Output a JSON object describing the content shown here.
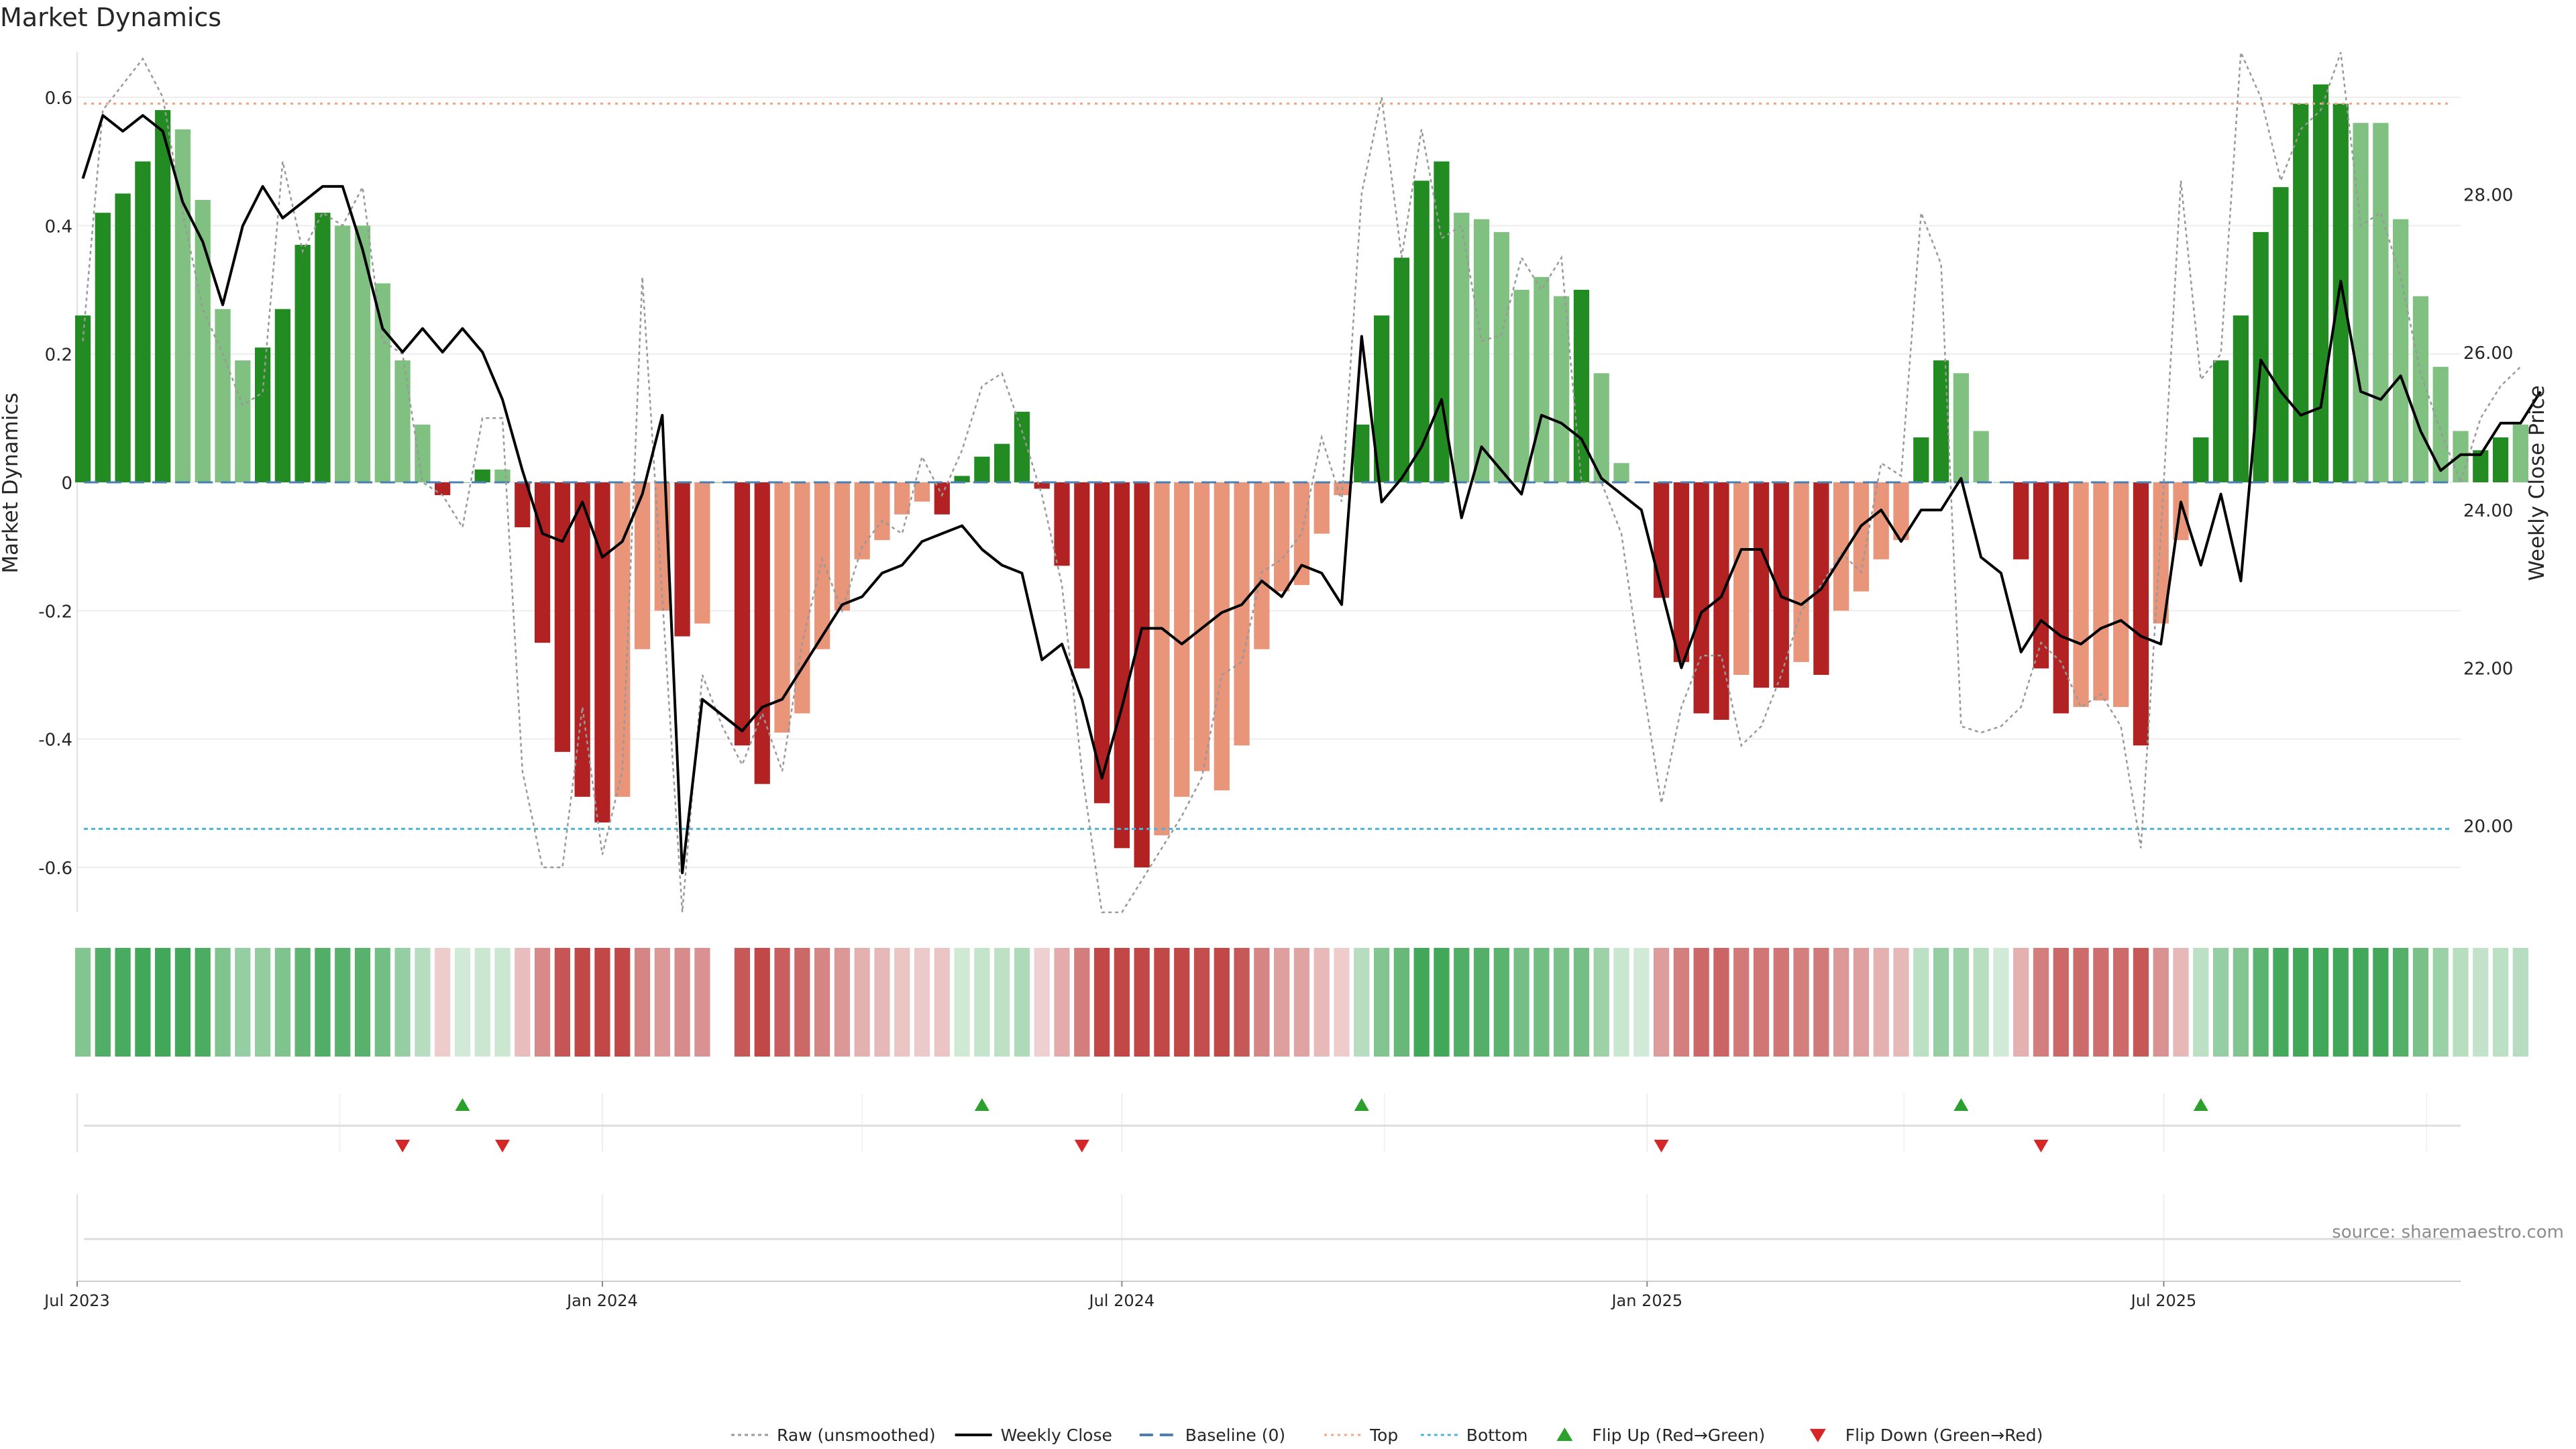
{
  "title": "Market Dynamics",
  "source_note": "source: sharemaestro.com",
  "colors": {
    "strong_green": "#228b22",
    "light_green": "#80c080",
    "strong_red": "#b22222",
    "light_red": "#e8957a",
    "baseline": "#4a7fb5",
    "top": "#f4a582",
    "bottom": "#4fb3d9",
    "raw": "#999999",
    "close": "#000000",
    "flip_up": "#2ca02c",
    "flip_down": "#d62728"
  },
  "chart_data": {
    "type": "bar",
    "title": "Market Dynamics",
    "ylabel": "Market Dynamics",
    "y2label": "Weekly Close Price",
    "ylim": [
      -0.67,
      0.67
    ],
    "y2lim": [
      18.9,
      29.8
    ],
    "xlim": [
      "2023-07-01",
      "2025-10-13"
    ],
    "yticks": [
      "0.6",
      "0.4",
      "0.2",
      "0",
      "-0.2",
      "-0.4",
      "-0.6"
    ],
    "ytick_values": [
      0.6,
      0.4,
      0.2,
      0,
      -0.2,
      -0.4,
      -0.6
    ],
    "y2ticks": [
      "28.00",
      "26.00",
      "24.00",
      "22.00",
      "20.00"
    ],
    "y2tick_values": [
      28,
      26,
      24,
      22,
      20
    ],
    "xticks": [
      "Jul 2023",
      "Jan 2024",
      "Jul 2024",
      "Jan 2025",
      "Jul 2025"
    ],
    "xtick_dates": [
      "2023-07-01",
      "2024-01-01",
      "2024-07-01",
      "2025-01-01",
      "2025-07-01"
    ],
    "start_date": "2023-07-03",
    "top_level": 0.59,
    "bottom_level": -0.54,
    "baseline": 0,
    "momentum": [
      0.26,
      0.42,
      0.45,
      0.5,
      0.58,
      0.55,
      0.44,
      0.27,
      0.19,
      0.21,
      0.27,
      0.37,
      0.42,
      0.4,
      0.4,
      0.31,
      0.19,
      0.09,
      -0.02,
      0.0,
      0.02,
      0.02,
      -0.07,
      -0.25,
      -0.42,
      -0.49,
      -0.53,
      -0.49,
      -0.26,
      -0.2,
      -0.24,
      -0.22,
      0.0,
      -0.41,
      -0.47,
      -0.39,
      -0.36,
      -0.26,
      -0.2,
      -0.12,
      -0.09,
      -0.05,
      -0.03,
      -0.05,
      0.01,
      0.04,
      0.06,
      0.11,
      -0.01,
      -0.13,
      -0.29,
      -0.5,
      -0.57,
      -0.6,
      -0.55,
      -0.49,
      -0.45,
      -0.48,
      -0.41,
      -0.26,
      -0.17,
      -0.16,
      -0.08,
      -0.02,
      0.09,
      0.26,
      0.35,
      0.47,
      0.5,
      0.42,
      0.41,
      0.39,
      0.3,
      0.32,
      0.29,
      0.3,
      0.17,
      0.03,
      0.0,
      -0.18,
      -0.28,
      -0.36,
      -0.37,
      -0.3,
      -0.32,
      -0.32,
      -0.28,
      -0.3,
      -0.2,
      -0.17,
      -0.12,
      -0.09,
      0.07,
      0.19,
      0.17,
      0.08,
      0.0,
      -0.12,
      -0.29,
      -0.36,
      -0.35,
      -0.34,
      -0.35,
      -0.41,
      -0.22,
      -0.09,
      0.07,
      0.19,
      0.26,
      0.39,
      0.46,
      0.59,
      0.62,
      0.59,
      0.56,
      0.56,
      0.41,
      0.29,
      0.18,
      0.08,
      0.05,
      0.07,
      0.09
    ],
    "strength": [
      1,
      1,
      1,
      1,
      1,
      0,
      0,
      0,
      0,
      1,
      1,
      1,
      1,
      0,
      0,
      0,
      0,
      0,
      1,
      1,
      1,
      0,
      1,
      1,
      1,
      1,
      1,
      0,
      0,
      0,
      1,
      0,
      1,
      1,
      1,
      0,
      0,
      0,
      0,
      0,
      0,
      0,
      0,
      1,
      1,
      1,
      1,
      1,
      1,
      1,
      1,
      1,
      1,
      1,
      0,
      0,
      0,
      0,
      0,
      0,
      0,
      0,
      0,
      0,
      1,
      1,
      1,
      1,
      1,
      0,
      0,
      0,
      0,
      0,
      0,
      1,
      0,
      0,
      0,
      1,
      1,
      1,
      1,
      0,
      1,
      1,
      0,
      1,
      0,
      0,
      0,
      0,
      1,
      1,
      0,
      0,
      0,
      1,
      1,
      1,
      0,
      0,
      0,
      1,
      0,
      0,
      1,
      1,
      1,
      1,
      1,
      1,
      1,
      1,
      0,
      0,
      0,
      0,
      0,
      0,
      1,
      1
    ],
    "raw": [
      0.22,
      0.58,
      0.62,
      0.66,
      0.6,
      0.42,
      0.27,
      0.2,
      0.12,
      0.14,
      0.5,
      0.36,
      0.42,
      0.4,
      0.46,
      0.22,
      0.2,
      0.0,
      -0.02,
      -0.07,
      0.1,
      0.1,
      -0.45,
      -0.6,
      -0.6,
      -0.35,
      -0.58,
      -0.45,
      0.32,
      -0.18,
      -0.68,
      -0.3,
      -0.38,
      -0.44,
      -0.36,
      -0.45,
      -0.25,
      -0.12,
      -0.2,
      -0.1,
      -0.06,
      -0.08,
      0.04,
      -0.02,
      0.05,
      0.15,
      0.17,
      0.08,
      -0.02,
      -0.16,
      -0.45,
      -0.67,
      -0.72,
      -0.62,
      -0.57,
      -0.52,
      -0.46,
      -0.3,
      -0.28,
      -0.14,
      -0.12,
      -0.08,
      0.07,
      -0.03,
      0.45,
      0.6,
      0.35,
      0.55,
      0.38,
      0.4,
      0.22,
      0.23,
      0.35,
      0.3,
      0.35,
      0.0,
      0.0,
      -0.08,
      -0.3,
      -0.5,
      -0.35,
      -0.27,
      -0.27,
      -0.41,
      -0.38,
      -0.3,
      -0.2,
      -0.16,
      -0.11,
      -0.14,
      0.03,
      0.01,
      0.42,
      0.34,
      -0.38,
      -0.39,
      -0.38,
      -0.35,
      -0.25,
      -0.28,
      -0.35,
      -0.33,
      -0.38,
      -0.57,
      -0.08,
      0.47,
      0.16,
      0.2,
      0.68,
      0.6,
      0.47,
      0.55,
      0.58,
      0.7,
      0.4,
      0.42,
      0.32,
      0.17,
      0.08,
      0.0,
      0.1,
      0.15,
      0.18
    ],
    "close": [
      28.2,
      29.0,
      28.8,
      29.0,
      28.8,
      27.9,
      27.4,
      26.6,
      27.6,
      28.1,
      27.7,
      27.9,
      28.1,
      28.1,
      27.3,
      26.3,
      26.0,
      26.3,
      26.0,
      26.3,
      26.0,
      25.4,
      24.5,
      23.7,
      23.6,
      24.1,
      23.4,
      23.6,
      24.2,
      25.2,
      19.4,
      21.6,
      21.4,
      21.2,
      21.5,
      21.6,
      22.0,
      22.4,
      22.8,
      22.9,
      23.2,
      23.3,
      23.6,
      23.7,
      23.8,
      23.5,
      23.3,
      23.2,
      22.1,
      22.3,
      21.6,
      20.6,
      21.5,
      22.5,
      22.5,
      22.3,
      22.5,
      22.7,
      22.8,
      23.1,
      22.9,
      23.3,
      23.2,
      22.8,
      26.2,
      24.1,
      24.4,
      24.8,
      25.4,
      23.9,
      24.8,
      24.5,
      24.2,
      25.2,
      25.1,
      24.9,
      24.4,
      24.2,
      24.0,
      23.0,
      22.0,
      22.7,
      22.9,
      23.5,
      23.5,
      22.9,
      22.8,
      23.0,
      23.4,
      23.8,
      24.0,
      23.6,
      24.0,
      24.0,
      24.4,
      23.4,
      23.2,
      22.2,
      22.6,
      22.4,
      22.3,
      22.5,
      22.6,
      22.4,
      22.3,
      24.1,
      23.3,
      24.2,
      23.1,
      25.9,
      25.5,
      25.2,
      25.3,
      26.9,
      25.5,
      25.4,
      25.7,
      25.0,
      24.5,
      24.7,
      24.7,
      25.1,
      25.1,
      25.5
    ],
    "heat_gap_index": 32,
    "flip_up": [
      "2023-11-13",
      "2024-05-13",
      "2024-09-23",
      "2025-04-21",
      "2025-07-14"
    ],
    "flip_down": [
      "2023-10-23",
      "2023-11-27",
      "2024-06-17",
      "2025-01-06",
      "2025-05-19"
    ],
    "legend": {
      "position": "bottom-center",
      "entries": [
        {
          "label": "Raw (unsmoothed)",
          "style": "raw"
        },
        {
          "label": "Weekly Close",
          "style": "close"
        },
        {
          "label": "Baseline (0)",
          "style": "baseline"
        },
        {
          "label": "Top",
          "style": "top"
        },
        {
          "label": "Bottom",
          "style": "bottom"
        },
        {
          "label": "Flip Up (Red→Green)",
          "style": "flip_up"
        },
        {
          "label": "Flip Down (Green→Red)",
          "style": "flip_down"
        }
      ]
    }
  }
}
